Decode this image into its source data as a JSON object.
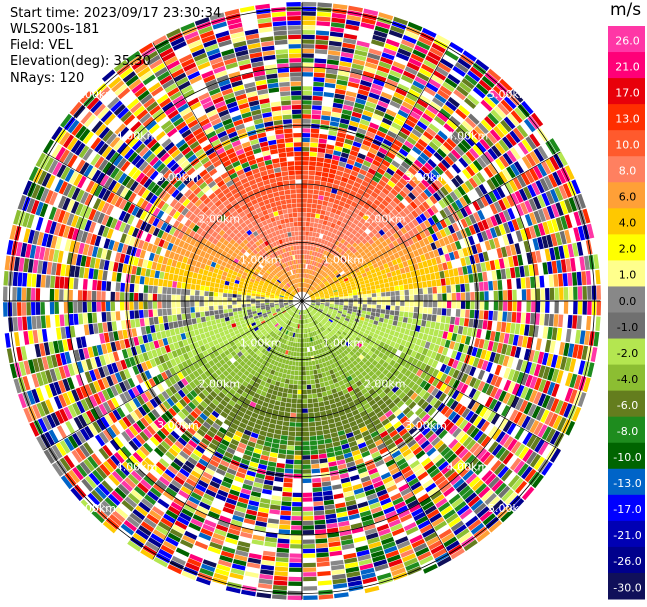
{
  "header": {
    "start_time": "Start time: 2023/09/17 23:30:34",
    "instrument": "WLS200s-181",
    "field": "Field: VEL",
    "elevation": "Elevation(deg): 35.30",
    "nrays": "NRays: 120"
  },
  "colorbar": {
    "unit": "m/s",
    "ticks": [
      "26.0",
      "21.0",
      "17.0",
      "13.0",
      "10.0",
      "8.0",
      "6.0",
      "4.0",
      "2.0",
      "1.0",
      "0.0",
      "-1.0",
      "-2.0",
      "-4.0",
      "-6.0",
      "-8.0",
      "-10.0",
      "-13.0",
      "-17.0",
      "-21.0",
      "-26.0",
      "-30.0"
    ],
    "colors": [
      "#ff37a6",
      "#ff0078",
      "#e8000a",
      "#ff2e00",
      "#ff5a2d",
      "#ff8060",
      "#ffa037",
      "#ffc800",
      "#ffff00",
      "#ffff8c",
      "#888888",
      "#707070",
      "#b4e650",
      "#8cbe32",
      "#647d1e",
      "#1e8c1e",
      "#006400",
      "#0064c8",
      "#0000ff",
      "#0000b4",
      "#00008c",
      "#10105a"
    ]
  },
  "chart_data": {
    "type": "heatmap",
    "subtype": "radar-ppi",
    "field": "VEL",
    "unit": "m/s",
    "n_rays": 120,
    "elevation_deg": 35.3,
    "range_ring_labels": [
      "1.00km",
      "2.00km",
      "3.00km",
      "4.00km",
      "5.00km"
    ],
    "range_rings_km": [
      1.0,
      2.0,
      3.0,
      4.0,
      5.0
    ],
    "max_range_km": 5.1,
    "description_regions": [
      {
        "sector": "north (upper half, near)",
        "velocity_range": [
          2.0,
          10.0
        ]
      },
      {
        "sector": "south (lower half, near)",
        "velocity_range": [
          -8.0,
          -2.0
        ]
      },
      {
        "sector": "outer ranges",
        "velocity_range": "noise"
      }
    ]
  }
}
